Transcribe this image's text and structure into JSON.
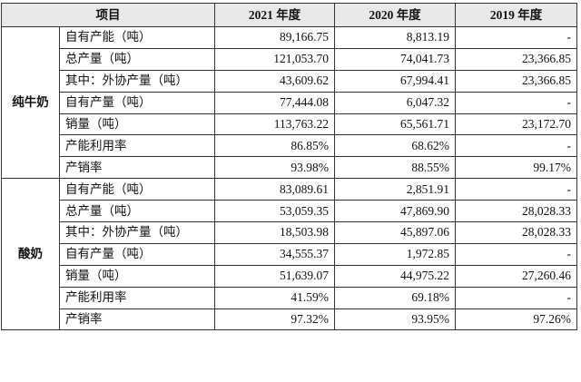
{
  "headers": [
    "项目",
    "2021 年度",
    "2020 年度",
    "2019 年度"
  ],
  "groups": [
    {
      "name": "纯牛奶",
      "rows": [
        {
          "metric": "自有产能（吨）",
          "v2021": "89,166.75",
          "v2020": "8,813.19",
          "v2019": "-"
        },
        {
          "metric": "总产量（吨）",
          "v2021": "121,053.70",
          "v2020": "74,041.73",
          "v2019": "23,366.85"
        },
        {
          "metric": "其中：外协产量（吨）",
          "v2021": "43,609.62",
          "v2020": "67,994.41",
          "v2019": "23,366.85"
        },
        {
          "metric": "自有产量（吨）",
          "v2021": "77,444.08",
          "v2020": "6,047.32",
          "v2019": "-"
        },
        {
          "metric": "销量（吨）",
          "v2021": "113,763.22",
          "v2020": "65,561.71",
          "v2019": "23,172.70"
        },
        {
          "metric": "产能利用率",
          "v2021": "86.85%",
          "v2020": "68.62%",
          "v2019": "-"
        },
        {
          "metric": "产销率",
          "v2021": "93.98%",
          "v2020": "88.55%",
          "v2019": "99.17%"
        }
      ]
    },
    {
      "name": "酸奶",
      "rows": [
        {
          "metric": "自有产能（吨）",
          "v2021": "83,089.61",
          "v2020": "2,851.91",
          "v2019": "-"
        },
        {
          "metric": "总产量（吨）",
          "v2021": "53,059.35",
          "v2020": "47,869.90",
          "v2019": "28,028.33"
        },
        {
          "metric": "其中：外协产量（吨）",
          "v2021": "18,503.98",
          "v2020": "45,897.06",
          "v2019": "28,028.33"
        },
        {
          "metric": "自有产量（吨）",
          "v2021": "34,555.37",
          "v2020": "1,972.85",
          "v2019": "-"
        },
        {
          "metric": "销量（吨）",
          "v2021": "51,639.07",
          "v2020": "44,975.22",
          "v2019": "27,260.46"
        },
        {
          "metric": "产能利用率",
          "v2021": "41.59%",
          "v2020": "69.18%",
          "v2019": "-"
        },
        {
          "metric": "产销率",
          "v2021": "97.32%",
          "v2020": "93.95%",
          "v2019": "97.26%"
        }
      ]
    }
  ]
}
